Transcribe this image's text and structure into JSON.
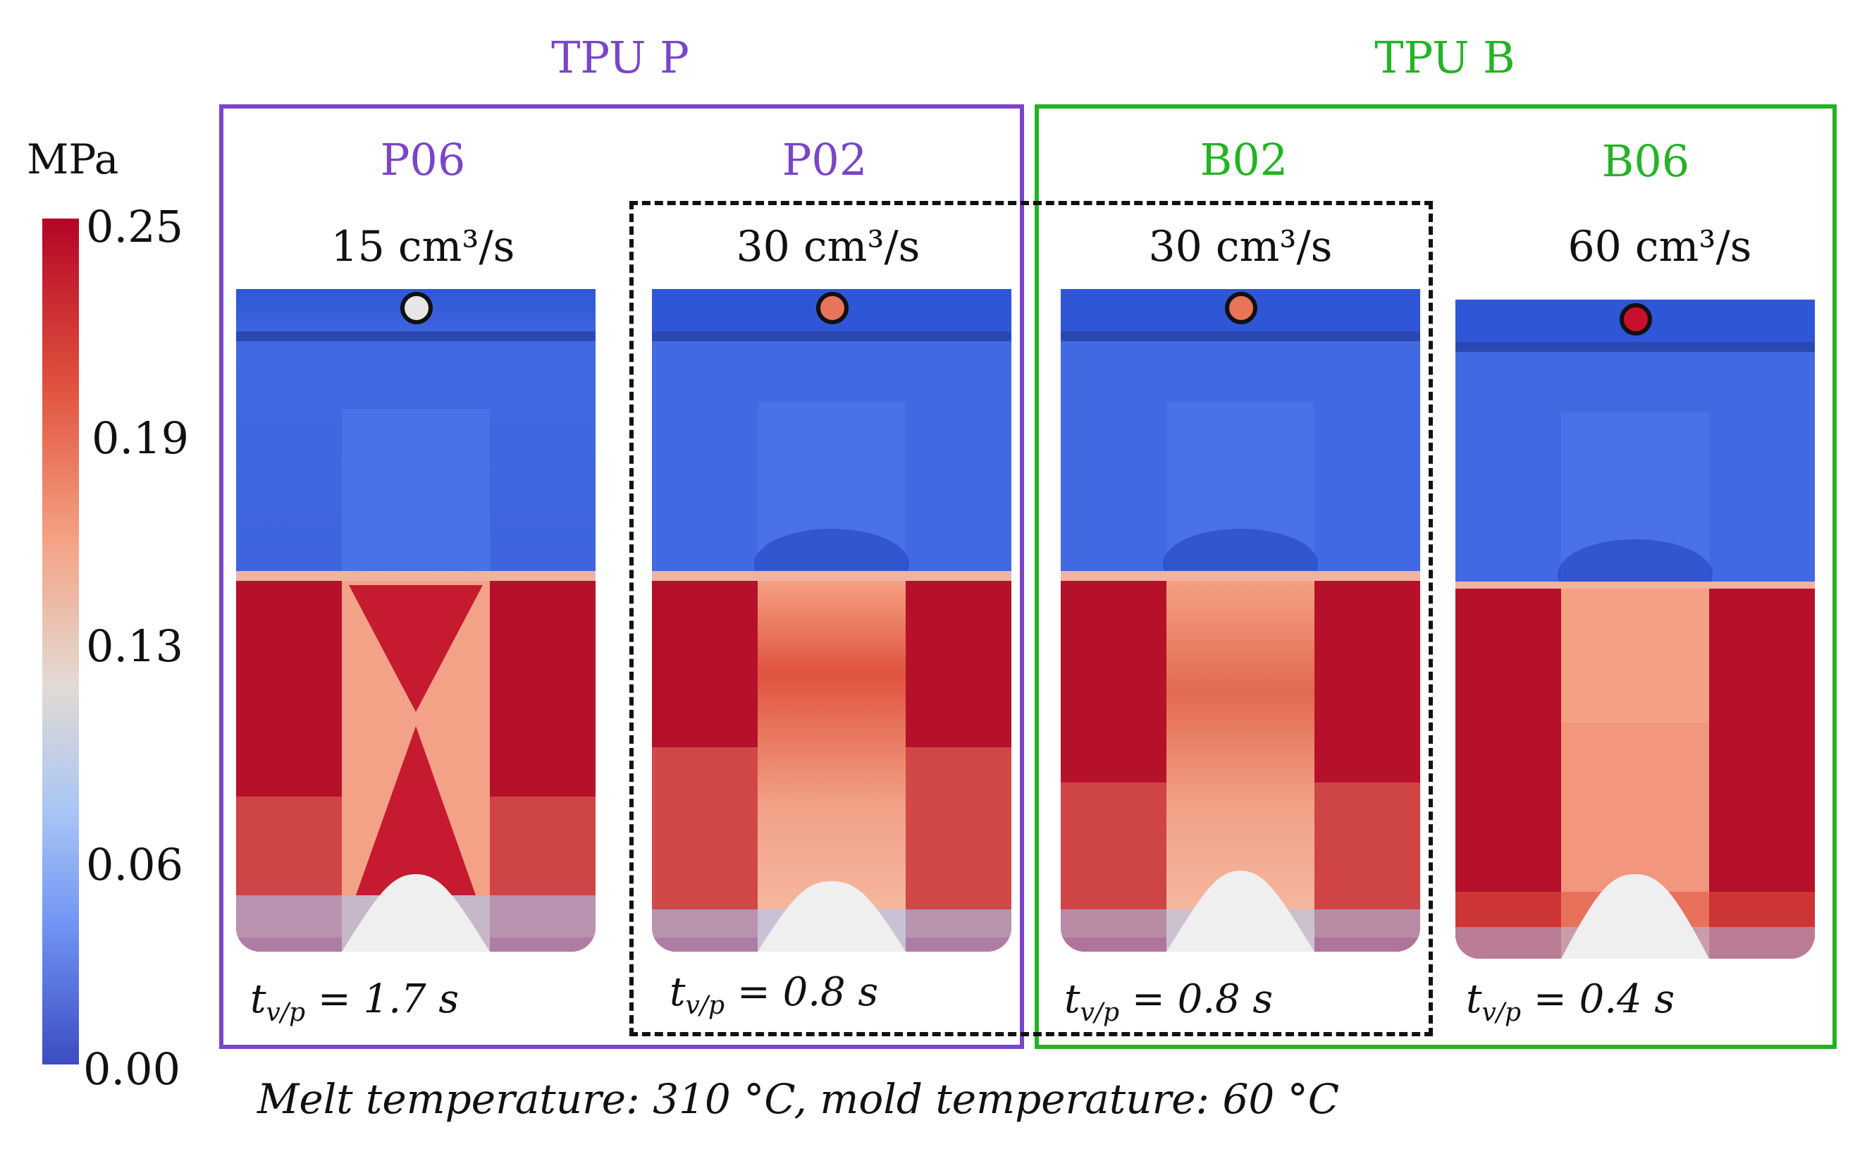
{
  "groups": [
    {
      "label": "TPU P",
      "color": "#7a45c8"
    },
    {
      "label": "TPU B",
      "color": "#24b324"
    }
  ],
  "colorbar": {
    "unit": "MPa",
    "ticks": [
      "0.25",
      "0.19",
      "0.13",
      "0.06",
      "0.00"
    ]
  },
  "samples": [
    {
      "name": "P06",
      "rate": "15 cm³/s",
      "time_value": "1.7 s",
      "dot_color": "#e6e6e6",
      "pattern": "crossed-high-stress"
    },
    {
      "name": "P02",
      "rate": "30 cm³/s",
      "time_value": "0.8 s",
      "dot_color": "#e8745a",
      "pattern": "moderate-center"
    },
    {
      "name": "B02",
      "rate": "30 cm³/s",
      "time_value": "0.8 s",
      "dot_color": "#e8745a",
      "pattern": "moderate-center"
    },
    {
      "name": "B06",
      "rate": "60 cm³/s",
      "time_value": "0.4 s",
      "dot_color": "#c8102e",
      "pattern": "high-sides"
    }
  ],
  "time_symbol": "t",
  "time_subscript": "v/p",
  "time_equals": " = ",
  "caption": "Melt temperature: 310 °C, mold temperature: 60 °C"
}
